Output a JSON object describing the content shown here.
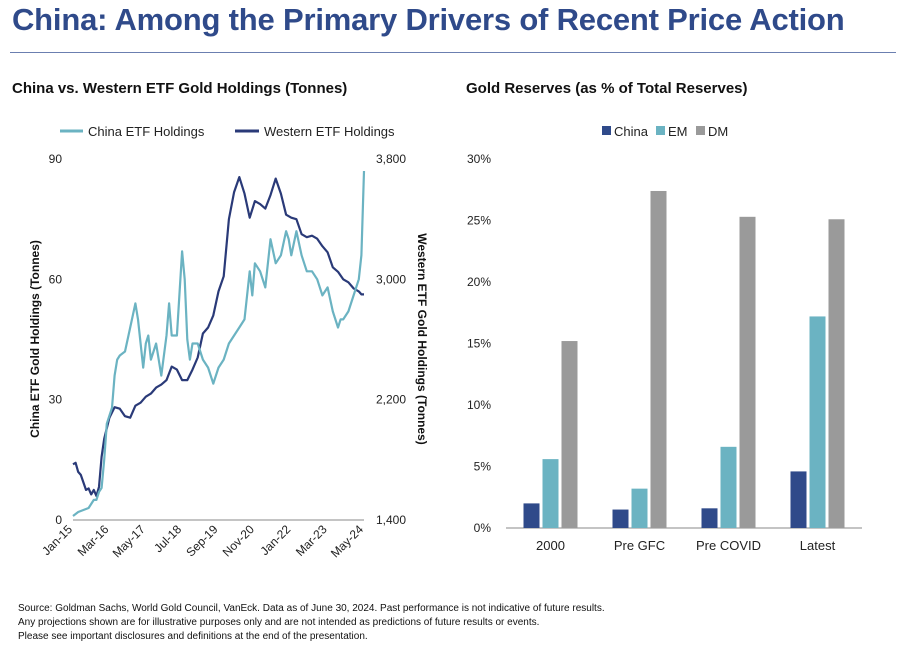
{
  "page": {
    "title": "China: Among the Primary Drivers of Recent Price Action",
    "footnotes": [
      "Source: Goldman Sachs, World Gold Council, VanEck. Data as of June 30, 2024. Past performance is not indicative of future results.",
      "Any projections shown are for illustrative purposes only and are not intended as  predictions of future results or events.",
      "Please see important disclosures and definitions at the end of the presentation."
    ]
  },
  "colors": {
    "china_etf": "#6bb3c2",
    "western_etf": "#2a3a78",
    "china_bar": "#2f4a8a",
    "em_bar": "#6bb3c2",
    "dm_bar": "#9a9a9a",
    "title": "#2f4a8a"
  },
  "chart_data": [
    {
      "type": "line",
      "title": "China vs. Western ETF Gold Holdings (Tonnes)",
      "legend": [
        "China ETF Holdings",
        "Western ETF Holdings"
      ],
      "ylabel_left": "China ETF Gold Holdings (Tonnes)",
      "ylabel_right": "Western ETF Gold Holdings (Tonnes)",
      "ylim_left": [
        0,
        90
      ],
      "ylim_right": [
        1400,
        3800
      ],
      "yticks_left": [
        "0",
        "30",
        "60",
        "90"
      ],
      "yticks_right": [
        "1,400",
        "2,200",
        "3,000",
        "3,800"
      ],
      "xticks": [
        "Jan-15",
        "Mar-16",
        "May-17",
        "Jul-18",
        "Sep-19",
        "Nov-20",
        "Jan-22",
        "Mar-23",
        "May-24"
      ],
      "x_range": [
        0,
        112
      ],
      "series": [
        {
          "name": "China ETF Holdings",
          "axis": "left",
          "x": [
            0,
            2,
            4,
            6,
            8,
            9,
            10,
            11,
            12,
            13,
            14,
            15,
            16,
            17,
            18,
            20,
            22,
            24,
            25,
            26,
            27,
            28,
            29,
            30,
            32,
            34,
            36,
            37,
            38,
            40,
            42,
            43,
            44,
            45,
            46,
            48,
            50,
            52,
            54,
            56,
            58,
            60,
            62,
            64,
            66,
            68,
            69,
            70,
            72,
            74,
            76,
            78,
            80,
            82,
            83,
            84,
            86,
            88,
            90,
            92,
            94,
            96,
            98,
            100,
            102,
            103,
            104,
            106,
            108,
            110,
            111,
            112
          ],
          "values": [
            1,
            2,
            2.5,
            3,
            5,
            5,
            7,
            8,
            15,
            24,
            26,
            28,
            36,
            40,
            41,
            42,
            48,
            54,
            50,
            44,
            38,
            44,
            46,
            40,
            44,
            36,
            46,
            54,
            46,
            46,
            67,
            60,
            45,
            40,
            44,
            44,
            40,
            38,
            34,
            38,
            40,
            44,
            46,
            48,
            50,
            62,
            56,
            64,
            62,
            58,
            70,
            64,
            66,
            72,
            70,
            66,
            72,
            66,
            62,
            62,
            60,
            56,
            58,
            52,
            48,
            50,
            50,
            52,
            56,
            60,
            66,
            87
          ]
        },
        {
          "name": "Western ETF Holdings",
          "axis": "right",
          "x": [
            0,
            1,
            2,
            3,
            4,
            5,
            6,
            7,
            8,
            9,
            10,
            11,
            12,
            14,
            16,
            18,
            20,
            22,
            24,
            26,
            28,
            30,
            32,
            34,
            36,
            38,
            40,
            42,
            44,
            46,
            48,
            50,
            52,
            54,
            56,
            58,
            60,
            62,
            64,
            66,
            68,
            70,
            72,
            74,
            76,
            78,
            80,
            82,
            84,
            86,
            88,
            90,
            92,
            94,
            96,
            98,
            100,
            102,
            104,
            106,
            108,
            110,
            111,
            112
          ],
          "values": [
            1770,
            1780,
            1720,
            1700,
            1650,
            1600,
            1610,
            1570,
            1600,
            1560,
            1620,
            1820,
            1940,
            2080,
            2150,
            2140,
            2090,
            2080,
            2160,
            2180,
            2220,
            2240,
            2280,
            2300,
            2330,
            2420,
            2400,
            2330,
            2330,
            2400,
            2480,
            2640,
            2680,
            2760,
            2920,
            3020,
            3400,
            3580,
            3680,
            3570,
            3410,
            3520,
            3500,
            3470,
            3560,
            3670,
            3570,
            3430,
            3410,
            3400,
            3300,
            3280,
            3290,
            3270,
            3220,
            3180,
            3080,
            3050,
            3000,
            2980,
            2940,
            2920,
            2900,
            2900
          ]
        }
      ]
    },
    {
      "type": "bar",
      "title": "Gold Reserves (as % of Total Reserves)",
      "categories": [
        "2000",
        "Pre GFC",
        "Pre COVID",
        "Latest"
      ],
      "legend": [
        "China",
        "EM",
        "DM"
      ],
      "ylim": [
        0,
        30
      ],
      "yticks": [
        "0%",
        "5%",
        "10%",
        "15%",
        "20%",
        "25%",
        "30%"
      ],
      "series": [
        {
          "name": "China",
          "values": [
            2.0,
            1.5,
            1.6,
            4.6
          ]
        },
        {
          "name": "EM",
          "values": [
            5.6,
            3.2,
            6.6,
            17.2
          ]
        },
        {
          "name": "DM",
          "values": [
            15.2,
            27.4,
            25.3,
            25.1
          ]
        }
      ]
    }
  ]
}
